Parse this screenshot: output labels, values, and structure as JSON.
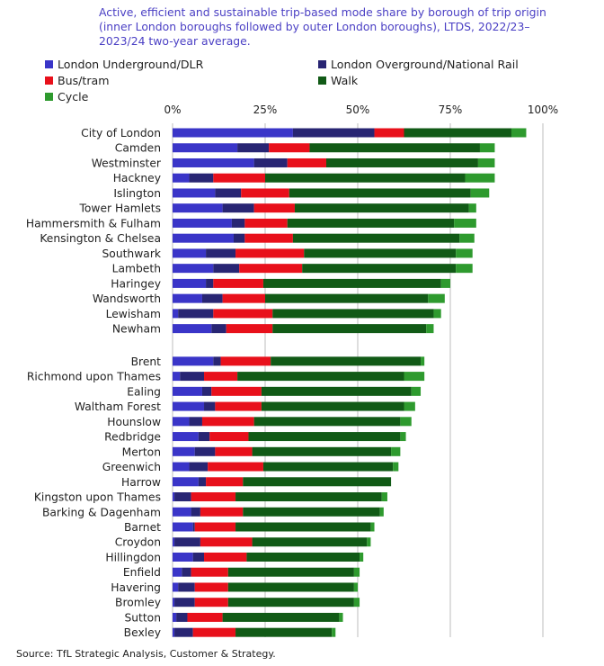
{
  "title": "Active, efficient and sustainable trip-based mode share by borough of trip origin (inner London boroughs followed by outer London boroughs), LTDS, 2022/23–2023/24 two-year average.",
  "source": "Source: TfL Strategic Analysis, Customer & Strategy.",
  "colors": {
    "London Underground/DLR": "#3a35c8",
    "London Overground/National Rail": "#282573",
    "Bus/tram": "#e8101b",
    "Walk": "#115a16",
    "Cycle": "#2e9a2e"
  },
  "chart_data": {
    "type": "bar",
    "orientation": "horizontal",
    "stacked": true,
    "title": "Active, efficient and sustainable trip-based mode share by borough of trip origin (inner London boroughs followed by outer London boroughs), LTDS, 2022/23–2023/24 two-year average.",
    "xlim": [
      0,
      100
    ],
    "xticks": [
      "0%",
      "25%",
      "50%",
      "75%",
      "100%"
    ],
    "legend_position": "top",
    "grid": true,
    "groups": [
      {
        "name": "inner",
        "categories": [
          "City of London",
          "Camden",
          "Westminster",
          "Hackney",
          "Islington",
          "Tower Hamlets",
          "Hammersmith & Fulham",
          "Kensington & Chelsea",
          "Southwark",
          "Lambeth",
          "Haringey",
          "Wandsworth",
          "Lewisham",
          "Newham"
        ]
      },
      {
        "name": "outer",
        "categories": [
          "Brent",
          "Richmond upon Thames",
          "Ealing",
          "Waltham Forest",
          "Hounslow",
          "Redbridge",
          "Merton",
          "Greenwich",
          "Harrow",
          "Kingston upon Thames",
          "Barking & Dagenham",
          "Barnet",
          "Croydon",
          "Hillingdon",
          "Enfield",
          "Havering",
          "Bromley",
          "Sutton",
          "Bexley"
        ]
      }
    ],
    "categories": [
      "City of London",
      "Camden",
      "Westminster",
      "Hackney",
      "Islington",
      "Tower Hamlets",
      "Hammersmith & Fulham",
      "Kensington & Chelsea",
      "Southwark",
      "Lambeth",
      "Haringey",
      "Wandsworth",
      "Lewisham",
      "Newham",
      "Brent",
      "Richmond upon Thames",
      "Ealing",
      "Waltham Forest",
      "Hounslow",
      "Redbridge",
      "Merton",
      "Greenwich",
      "Harrow",
      "Kingston upon Thames",
      "Barking & Dagenham",
      "Barnet",
      "Croydon",
      "Hillingdon",
      "Enfield",
      "Havering",
      "Bromley",
      "Sutton",
      "Bexley"
    ],
    "series": [
      {
        "name": "London Underground/DLR",
        "values": [
          32.5,
          17.5,
          22,
          4.5,
          11.5,
          13.5,
          16,
          16.5,
          9,
          11,
          9,
          8,
          1.5,
          10.5,
          11,
          2,
          8,
          8.5,
          4.5,
          7,
          6,
          4.5,
          7,
          0.5,
          5,
          5.5,
          0.5,
          5.5,
          2.5,
          1.5,
          0.5,
          1,
          0.5
        ]
      },
      {
        "name": "London Overground/National Rail",
        "values": [
          22,
          8.5,
          9,
          6.5,
          7,
          8.5,
          3.5,
          3,
          8,
          7,
          2,
          5.5,
          9.5,
          4,
          2,
          6.5,
          2.5,
          3,
          3.5,
          3,
          5.5,
          5,
          2,
          4.5,
          2.5,
          0.5,
          7,
          3,
          2.5,
          4.5,
          5.5,
          3,
          5
        ]
      },
      {
        "name": "Bus/tram",
        "values": [
          8,
          11,
          10.5,
          14,
          13,
          11,
          11.5,
          13,
          18.5,
          17,
          13.5,
          11.5,
          16,
          12.5,
          13.5,
          9,
          13.5,
          12.5,
          14,
          10.5,
          10,
          15,
          10,
          12,
          11.5,
          11,
          14,
          11.5,
          10,
          9,
          9,
          9.5,
          11.5
        ]
      },
      {
        "name": "Walk",
        "values": [
          29,
          46,
          41,
          54,
          49,
          47,
          45,
          45,
          41,
          41.5,
          48,
          44,
          43.5,
          41.5,
          40.5,
          45,
          40.5,
          38.5,
          39.5,
          41,
          37.5,
          35,
          40,
          39.5,
          37,
          36.5,
          31,
          30.5,
          34,
          34,
          34,
          31.5,
          26
        ]
      },
      {
        "name": "Cycle",
        "values": [
          4,
          4,
          4.5,
          8,
          5,
          2,
          6,
          4,
          4.5,
          4.5,
          2.5,
          4.5,
          2,
          2,
          1,
          5.5,
          2.5,
          3,
          3,
          1.5,
          2.5,
          1.5,
          0,
          1.5,
          1,
          1,
          1,
          1,
          1.5,
          1,
          1.5,
          1,
          1
        ]
      }
    ]
  }
}
